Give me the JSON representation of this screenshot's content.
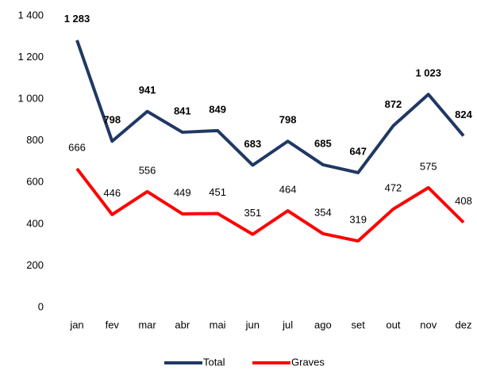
{
  "chart_data": {
    "type": "line",
    "categories": [
      "jan",
      "fev",
      "mar",
      "abr",
      "mai",
      "jun",
      "jul",
      "ago",
      "set",
      "out",
      "nov",
      "dez"
    ],
    "series": [
      {
        "name": "Total",
        "color": "#203864",
        "values": [
          1283,
          798,
          941,
          841,
          849,
          683,
          798,
          685,
          647,
          872,
          1023,
          824
        ],
        "value_labels": [
          "1 283",
          "798",
          "941",
          "841",
          "849",
          "683",
          "798",
          "685",
          "647",
          "872",
          "1 023",
          "824"
        ]
      },
      {
        "name": "Graves",
        "color": "#ff0000",
        "values": [
          666,
          446,
          556,
          449,
          451,
          351,
          464,
          354,
          319,
          472,
          575,
          408
        ]
      }
    ],
    "ylim": [
      0,
      1400
    ],
    "yticks": [
      0,
      200,
      400,
      600,
      800,
      {
        "value": 1000,
        "label": "1 000"
      },
      {
        "value": 1200,
        "label": "1 200"
      },
      {
        "value": 1400,
        "label": "1 400"
      }
    ],
    "grid": false,
    "legend": "bottom"
  }
}
